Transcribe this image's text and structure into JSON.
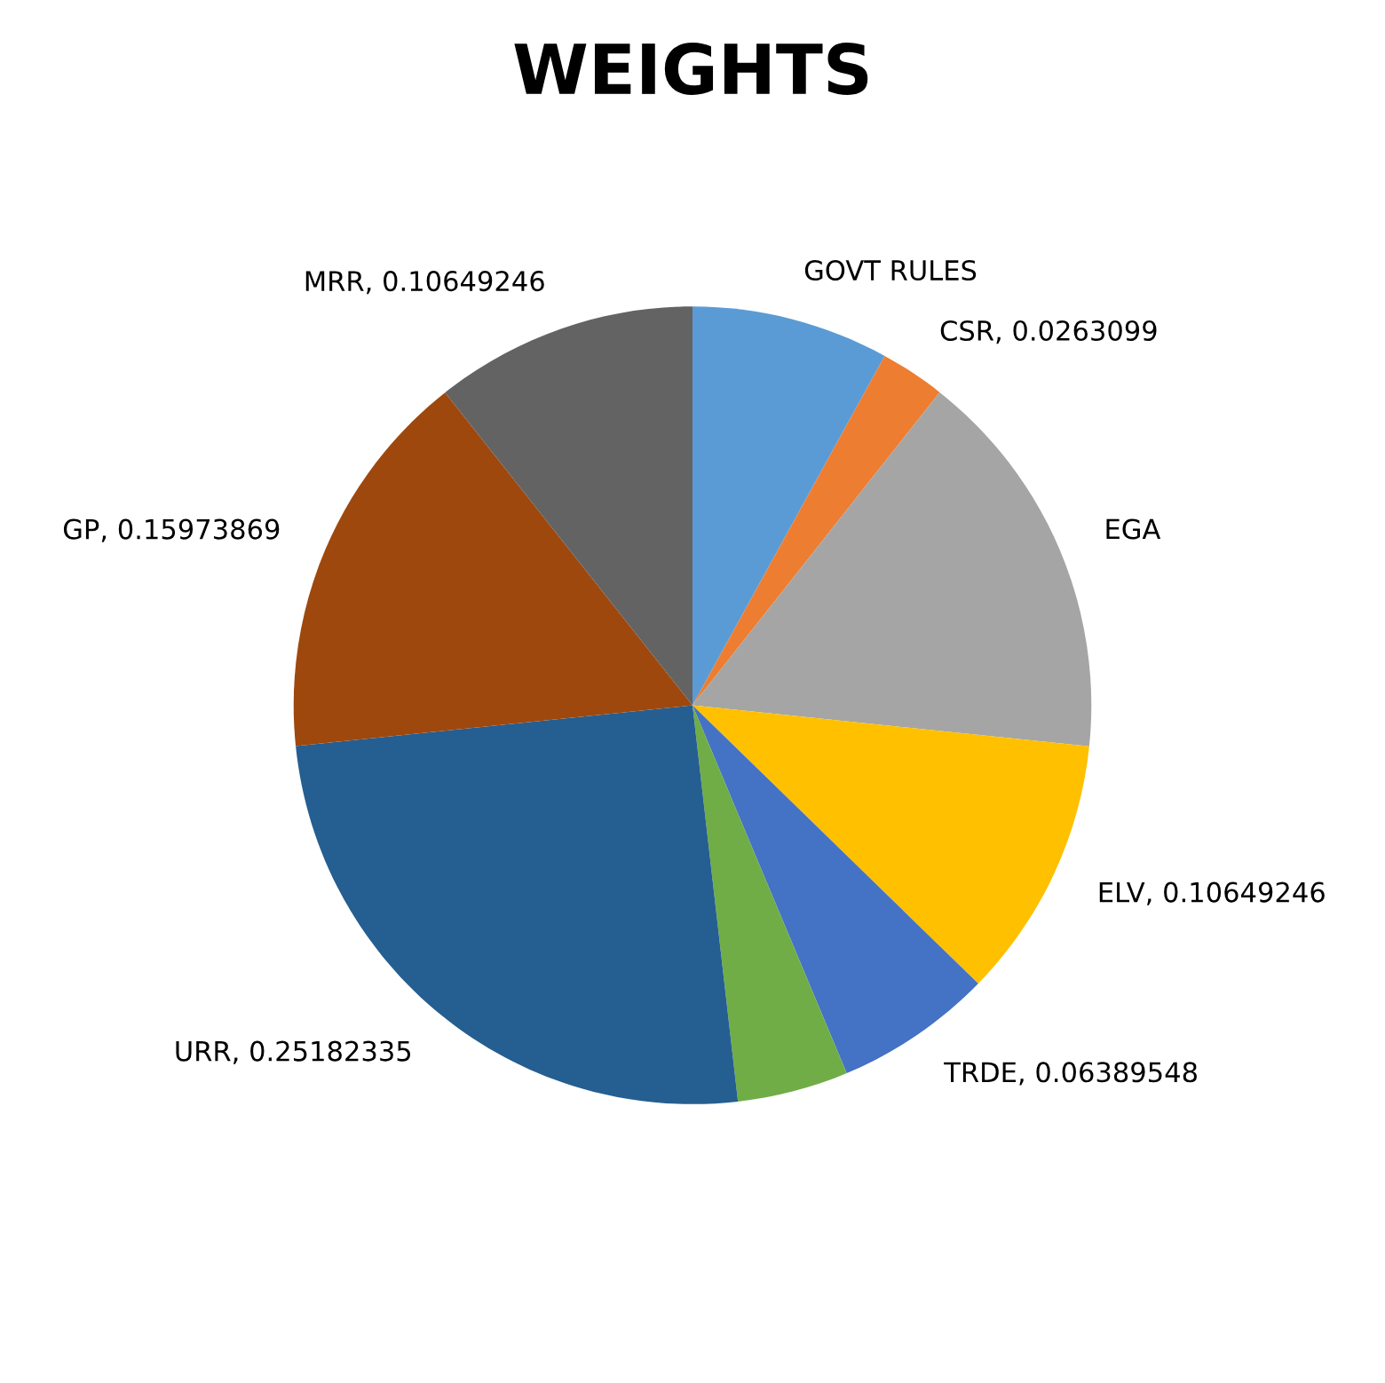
{
  "chart_data": {
    "type": "pie",
    "title": "WEIGHTS",
    "categories": [
      "GOVT RULES",
      "CSR",
      "EGA",
      "ELV",
      "TRDE",
      null,
      "URR",
      "GP",
      "MRR"
    ],
    "values": [
      0.08,
      0.0263099,
      0.16,
      0.10649246,
      0.06389548,
      0.045,
      0.25182335,
      0.15973869,
      0.10649246
    ],
    "value_labels": [
      null,
      "0.0263099",
      null,
      "0.10649246",
      "0.06389548",
      null,
      "0.25182335",
      "0.15973869",
      "0.10649246"
    ],
    "colors": [
      "#5b9bd5",
      "#ed7d31",
      "#a5a5a5",
      "#ffc000",
      "#4472c4",
      "#70ad47",
      "#255e91",
      "#9e480e",
      "#636363"
    ],
    "legend": false
  }
}
